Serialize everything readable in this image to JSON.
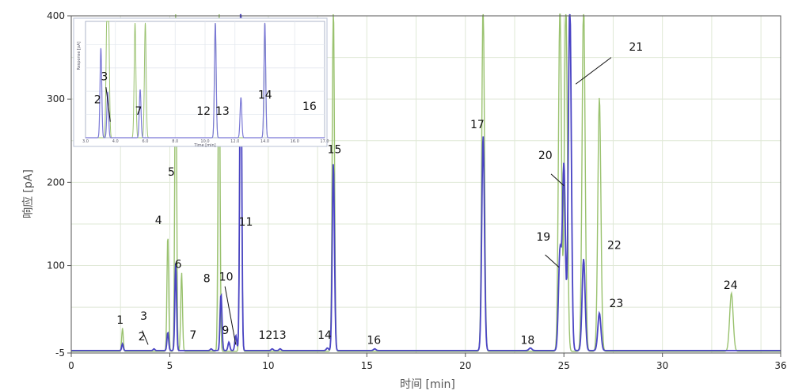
{
  "chart_data": {
    "type": "line",
    "xlabel": "时间 [min]",
    "ylabel": "响应 [pA]",
    "xlim": [
      0,
      36
    ],
    "ylim": [
      -5,
      400
    ],
    "x_ticks": [
      0,
      5,
      10,
      15,
      20,
      25,
      30,
      36
    ],
    "y_ticks": [
      -5,
      100,
      200,
      300,
      400
    ],
    "grid": true,
    "colors": {
      "blue": "#4a44c4",
      "green": "#9ac26f",
      "grid": "#dfe8d6"
    },
    "series": [
      {
        "color": "#9ac26f",
        "peaks": [
          {
            "x": 2.6,
            "y": 28
          },
          {
            "x": 4.9,
            "y": 140
          },
          {
            "x": 5.3,
            "y": 420
          },
          {
            "x": 5.6,
            "y": 95
          },
          {
            "x": 7.5,
            "y": 420
          },
          {
            "x": 8.6,
            "y": 420
          },
          {
            "x": 13.3,
            "y": 420
          },
          {
            "x": 20.9,
            "y": 420
          },
          {
            "x": 24.8,
            "y": 420
          },
          {
            "x": 25.1,
            "y": 420
          },
          {
            "x": 26.0,
            "y": 420
          },
          {
            "x": 26.8,
            "y": 305
          },
          {
            "x": 33.5,
            "y": 70
          }
        ]
      },
      {
        "color": "#4a44c4",
        "peaks": [
          {
            "x": 2.6,
            "y": 8
          },
          {
            "x": 4.2,
            "y": 2
          },
          {
            "x": 4.9,
            "y": 22
          },
          {
            "x": 5.3,
            "y": 105
          },
          {
            "x": 7.1,
            "y": 2
          },
          {
            "x": 7.6,
            "y": 68
          },
          {
            "x": 8.0,
            "y": 10
          },
          {
            "x": 8.35,
            "y": 18
          },
          {
            "x": 8.6,
            "y": 420
          },
          {
            "x": 10.2,
            "y": 2
          },
          {
            "x": 10.6,
            "y": 2
          },
          {
            "x": 13.0,
            "y": 3
          },
          {
            "x": 13.3,
            "y": 225
          },
          {
            "x": 15.4,
            "y": 2
          },
          {
            "x": 20.9,
            "y": 258
          },
          {
            "x": 23.3,
            "y": 3
          },
          {
            "x": 24.8,
            "y": 118
          },
          {
            "x": 25.0,
            "y": 222
          },
          {
            "x": 25.3,
            "y": 420
          },
          {
            "x": 26.0,
            "y": 110
          },
          {
            "x": 26.8,
            "y": 45
          }
        ]
      }
    ],
    "peak_labels": [
      {
        "text": "1",
        "x": 2.3,
        "y": 30
      },
      {
        "text": "3",
        "x": 3.5,
        "y": 35
      },
      {
        "text": "2",
        "x": 3.4,
        "y": 10
      },
      {
        "text": "4",
        "x": 4.25,
        "y": 150
      },
      {
        "text": "5",
        "x": 4.9,
        "y": 208
      },
      {
        "text": "6",
        "x": 5.25,
        "y": 97
      },
      {
        "text": "7",
        "x": 6.0,
        "y": 12
      },
      {
        "text": "8",
        "x": 6.7,
        "y": 80
      },
      {
        "text": "10",
        "x": 7.5,
        "y": 82
      },
      {
        "text": "9",
        "x": 7.65,
        "y": 18
      },
      {
        "text": "11",
        "x": 8.5,
        "y": 148
      },
      {
        "text": "12",
        "x": 9.5,
        "y": 12
      },
      {
        "text": "13",
        "x": 10.2,
        "y": 12
      },
      {
        "text": "14",
        "x": 12.5,
        "y": 12
      },
      {
        "text": "15",
        "x": 13.0,
        "y": 235
      },
      {
        "text": "16",
        "x": 15.0,
        "y": 6
      },
      {
        "text": "17",
        "x": 20.25,
        "y": 265
      },
      {
        "text": "18",
        "x": 22.8,
        "y": 6
      },
      {
        "text": "19",
        "x": 23.6,
        "y": 130
      },
      {
        "text": "20",
        "x": 23.7,
        "y": 228
      },
      {
        "text": "21",
        "x": 28.3,
        "y": 358
      },
      {
        "text": "22",
        "x": 27.2,
        "y": 120
      },
      {
        "text": "23",
        "x": 27.3,
        "y": 50
      },
      {
        "text": "24",
        "x": 33.1,
        "y": 72
      }
    ],
    "leader_lines": [
      {
        "x1": 3.6,
        "y1": 22,
        "x2": 3.9,
        "y2": 5
      },
      {
        "x1": 7.8,
        "y1": 75,
        "x2": 8.35,
        "y2": 5
      },
      {
        "x1": 24.05,
        "y1": 113,
        "x2": 24.75,
        "y2": 98
      },
      {
        "x1": 24.35,
        "y1": 210,
        "x2": 25.0,
        "y2": 196
      },
      {
        "x1": 27.4,
        "y1": 350,
        "x2": 25.6,
        "y2": 318
      }
    ],
    "inset": {
      "xlim": [
        3.0,
        17.0
      ],
      "x_ticks": [
        "3.0",
        "4.0",
        "6.0",
        "8.0",
        "10.0",
        "12.0",
        "14.0",
        "16.0",
        "17.0"
      ],
      "xlabel": "Time [min]",
      "ylabel": "Response [pA]",
      "peaks_green": [
        {
          "x": 4.25,
          "y": 1.0
        },
        {
          "x": 4.35,
          "y": 1.0
        },
        {
          "x": 5.9,
          "y": 1.0
        },
        {
          "x": 6.5,
          "y": 1.0
        },
        {
          "x": 10.6,
          "y": 1.0
        },
        {
          "x": 13.5,
          "y": 1.0
        }
      ],
      "peaks_blue": [
        {
          "x": 3.9,
          "y": 0.78
        },
        {
          "x": 4.3,
          "y": 0.4
        },
        {
          "x": 6.2,
          "y": 0.42
        },
        {
          "x": 10.6,
          "y": 1.0
        },
        {
          "x": 12.1,
          "y": 0.35
        },
        {
          "x": 13.5,
          "y": 1.0
        }
      ],
      "labels": [
        {
          "text": "3",
          "x": 3.9,
          "y": 0.5
        },
        {
          "text": "2",
          "x": 3.5,
          "y": 0.3
        },
        {
          "text": "7",
          "x": 5.9,
          "y": 0.2
        },
        {
          "text": "12",
          "x": 9.5,
          "y": 0.2
        },
        {
          "text": "13",
          "x": 10.6,
          "y": 0.2
        },
        {
          "text": "14",
          "x": 13.1,
          "y": 0.34
        },
        {
          "text": "16",
          "x": 15.7,
          "y": 0.24
        }
      ],
      "leader": {
        "x1": 4.2,
        "y1": 0.44,
        "x2": 4.45,
        "y2": 0.14
      }
    }
  }
}
